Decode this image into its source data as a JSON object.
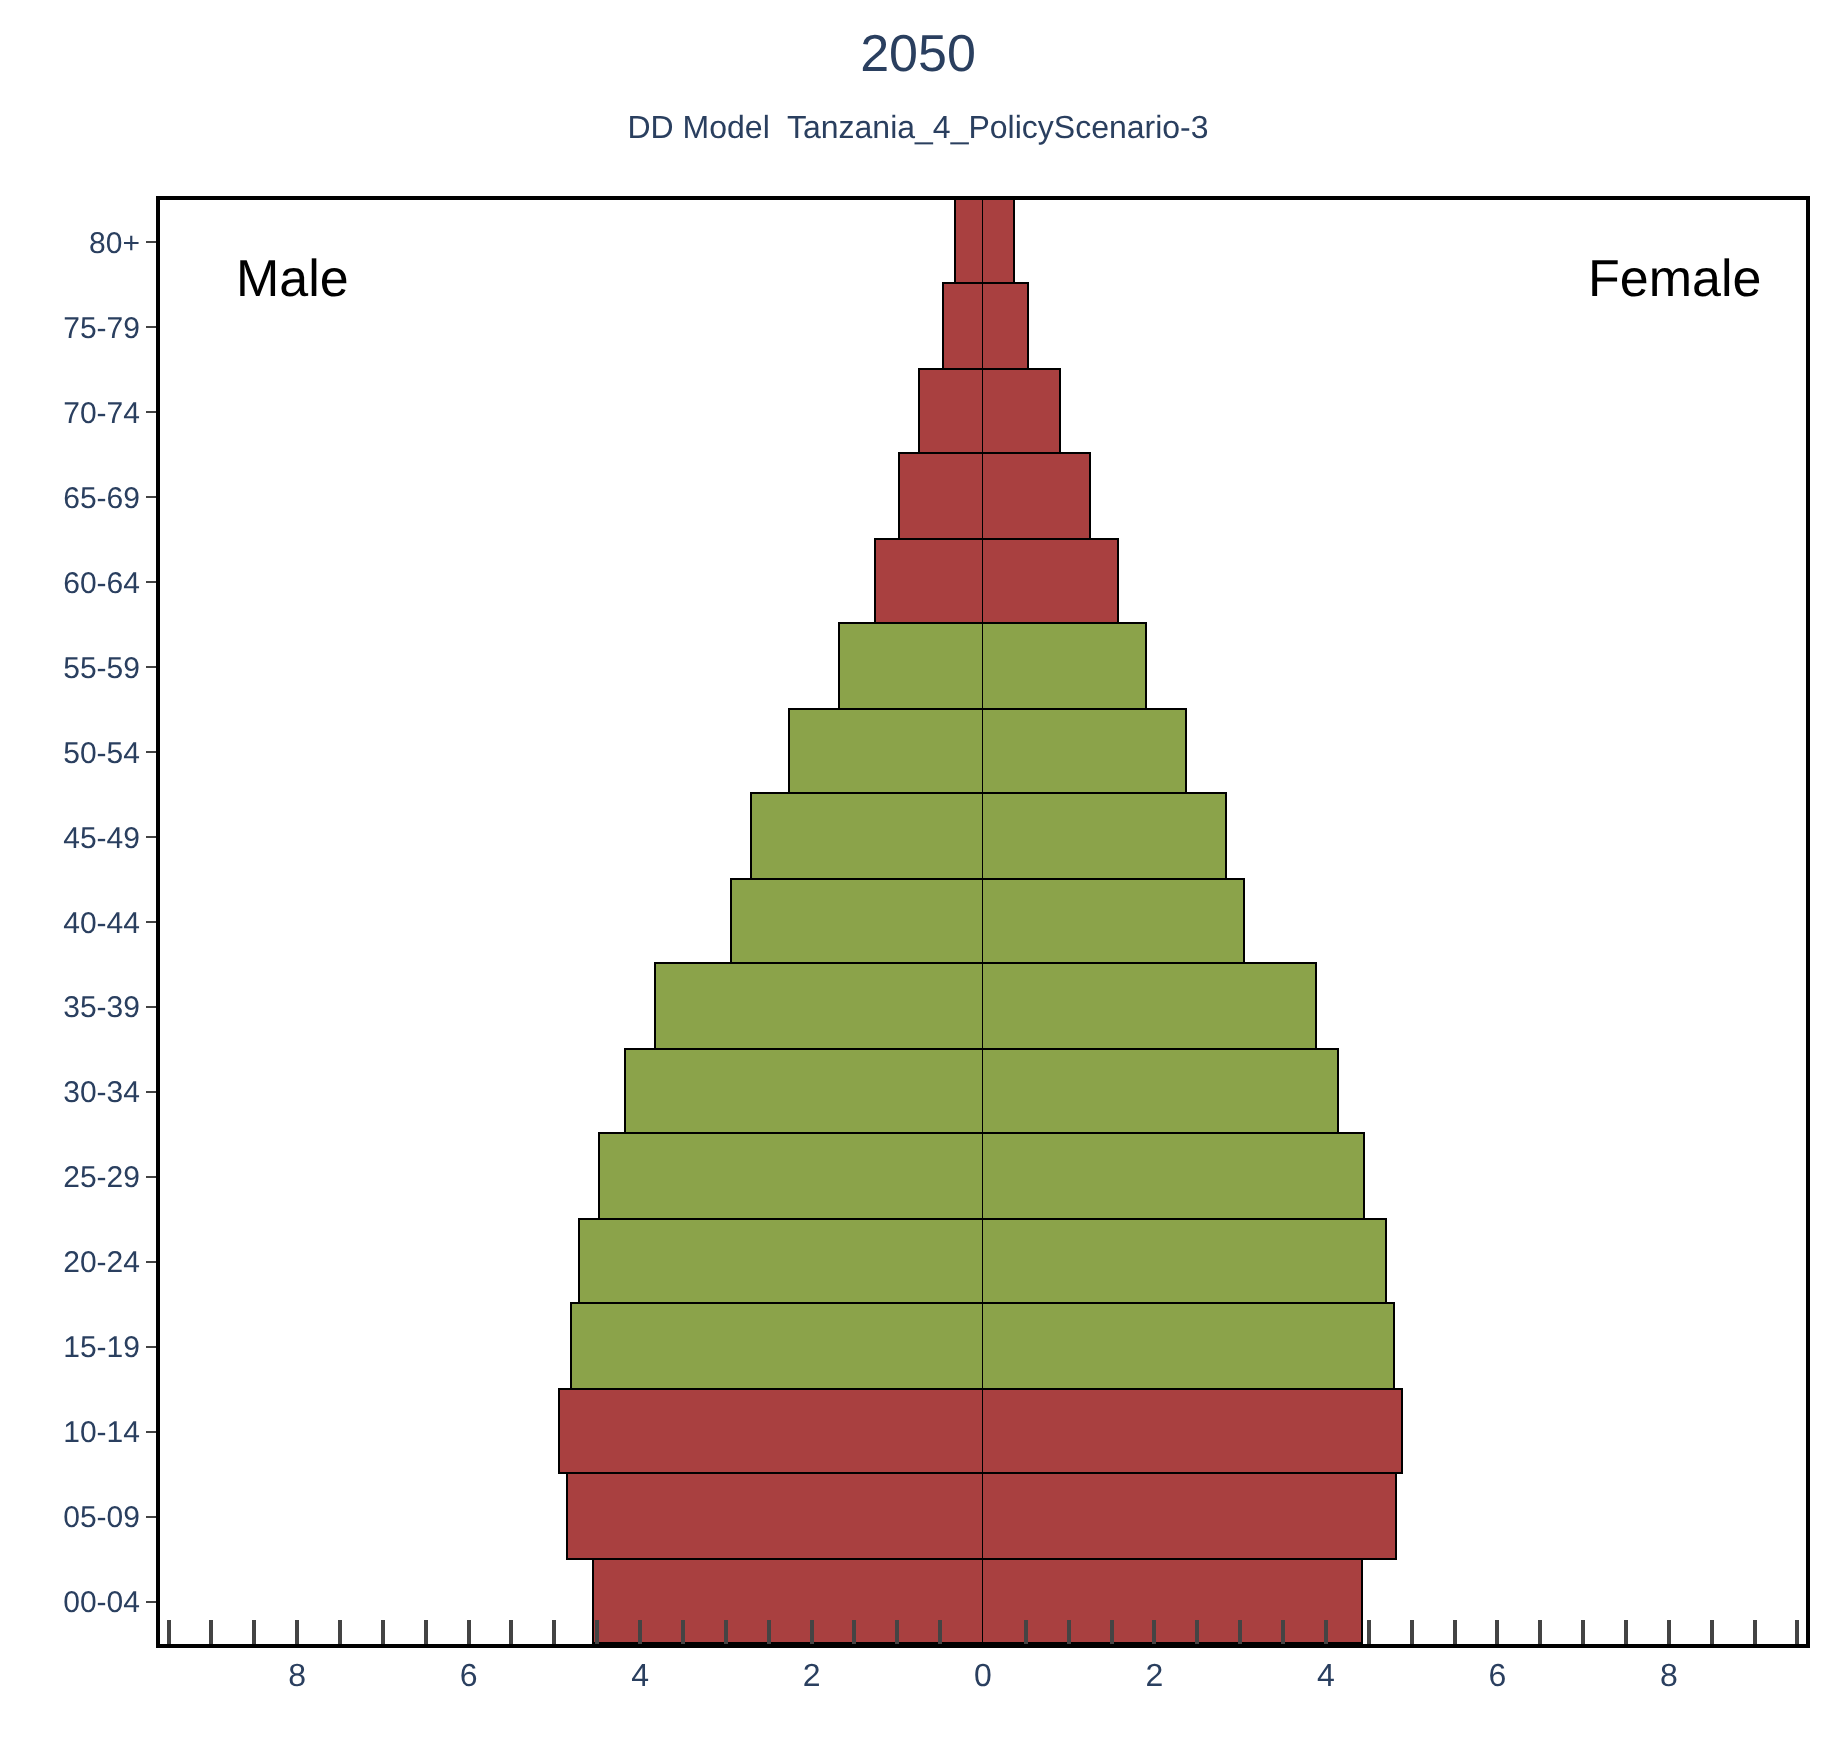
{
  "chart_data": [
    {
      "type": "bar",
      "orientation": "horizontal",
      "title": "2050",
      "subtitle": "DD Model  Tanzania_4_PolicyScenario-3",
      "categories": [
        "80+",
        "75-79",
        "70-74",
        "65-69",
        "60-64",
        "55-59",
        "50-54",
        "45-49",
        "40-44",
        "35-39",
        "30-34",
        "25-29",
        "20-24",
        "15-19",
        "10-14",
        "05-09",
        "00-04"
      ],
      "series": [
        {
          "name": "Male",
          "values": [
            0.32,
            0.46,
            0.74,
            0.97,
            1.24,
            1.66,
            2.25,
            2.69,
            2.92,
            3.82,
            4.16,
            4.46,
            4.71,
            4.8,
            4.94,
            4.83,
            4.53
          ],
          "colors": [
            "#a94040",
            "#a94040",
            "#a94040",
            "#a94040",
            "#a94040",
            "#8ba34a",
            "#8ba34a",
            "#8ba34a",
            "#8ba34a",
            "#8ba34a",
            "#8ba34a",
            "#8ba34a",
            "#8ba34a",
            "#8ba34a",
            "#a94040",
            "#a94040",
            "#a94040"
          ]
        }
      ],
      "xlim": [
        9.6,
        0
      ],
      "xticks": [
        {
          "value": 9.5,
          "label": null
        },
        {
          "value": 9,
          "label": null
        },
        {
          "value": 8.5,
          "label": null
        },
        8,
        {
          "value": 7.5,
          "label": null
        },
        {
          "value": 7,
          "label": null
        },
        {
          "value": 6.5,
          "label": null
        },
        6,
        {
          "value": 5.5,
          "label": null
        },
        {
          "value": 5,
          "label": null
        },
        {
          "value": 4.5,
          "label": null
        },
        4,
        {
          "value": 3.5,
          "label": null
        },
        {
          "value": 3,
          "label": null
        },
        {
          "value": 2.5,
          "label": null
        },
        2,
        {
          "value": 1.5,
          "label": null
        },
        {
          "value": 1,
          "label": null
        },
        {
          "value": 0.5,
          "label": null
        },
        0
      ]
    },
    {
      "type": "bar",
      "orientation": "horizontal",
      "tick_labels": "x",
      "categories": [
        "80+",
        "75-79",
        "70-74",
        "65-69",
        "60-64",
        "55-59",
        "50-54",
        "45-49",
        "40-44",
        "35-39",
        "30-34",
        "25-29",
        "20-24",
        "15-19",
        "10-14",
        "05-09",
        "00-04"
      ],
      "series": [
        {
          "name": "Female",
          "values": [
            0.37,
            0.53,
            0.9,
            1.26,
            1.59,
            1.91,
            2.39,
            2.85,
            3.06,
            3.89,
            4.16,
            4.46,
            4.71,
            4.8,
            4.9,
            4.83,
            4.44
          ],
          "colors": [
            "#a94040",
            "#a94040",
            "#a94040",
            "#a94040",
            "#a94040",
            "#8ba34a",
            "#8ba34a",
            "#8ba34a",
            "#8ba34a",
            "#8ba34a",
            "#8ba34a",
            "#8ba34a",
            "#8ba34a",
            "#8ba34a",
            "#a94040",
            "#a94040",
            "#a94040"
          ]
        }
      ],
      "xlim": [
        0,
        9.6
      ],
      "xticks": [
        {
          "value": 0.5,
          "label": null
        },
        {
          "value": 1,
          "label": null
        },
        {
          "value": 1.5,
          "label": null
        },
        2,
        {
          "value": 2.5,
          "label": null
        },
        {
          "value": 3,
          "label": null
        },
        {
          "value": 3.5,
          "label": null
        },
        4,
        {
          "value": 4.5,
          "label": null
        },
        {
          "value": 5,
          "label": null
        },
        {
          "value": 5.5,
          "label": null
        },
        6,
        {
          "value": 6.5,
          "label": null
        },
        {
          "value": 7,
          "label": null
        },
        {
          "value": 7.5,
          "label": null
        },
        8,
        {
          "value": 8.5,
          "label": null
        },
        {
          "value": 9,
          "label": null
        },
        {
          "value": 9.5,
          "label": null
        }
      ]
    }
  ]
}
